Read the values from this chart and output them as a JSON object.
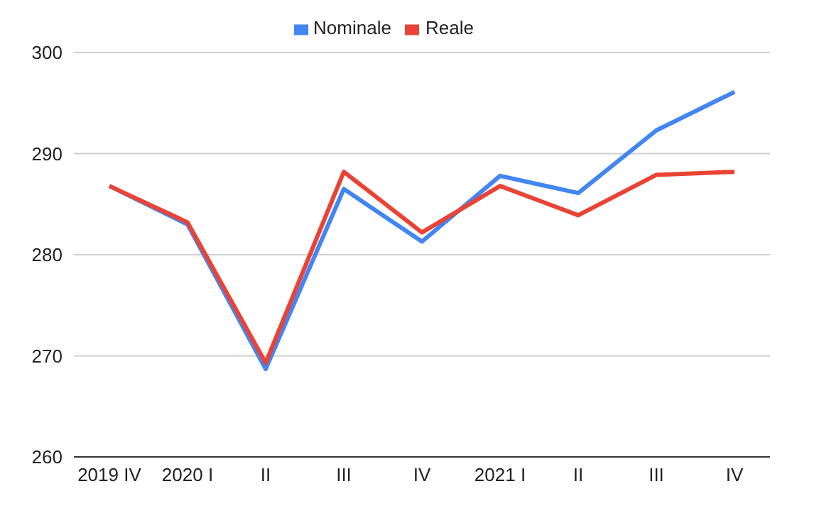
{
  "chart_data": {
    "type": "line",
    "categories": [
      "2019 IV",
      "2020 I",
      "II",
      "III",
      "IV",
      "2021 I",
      "II",
      "III",
      "IV"
    ],
    "series": [
      {
        "name": "Nominale",
        "color": "#4285f4",
        "values": [
          286.8,
          283.0,
          268.7,
          286.5,
          281.3,
          287.8,
          286.1,
          292.3,
          296.1
        ]
      },
      {
        "name": "Reale",
        "color": "#ea4335",
        "values": [
          286.8,
          283.2,
          269.3,
          288.2,
          282.2,
          286.8,
          283.9,
          287.9,
          288.2
        ]
      }
    ],
    "ylim": [
      260,
      300
    ],
    "yticks": [
      260,
      270,
      280,
      290,
      300
    ],
    "grid": "y",
    "legend": "top",
    "marker": "none",
    "line_style": "solid"
  }
}
